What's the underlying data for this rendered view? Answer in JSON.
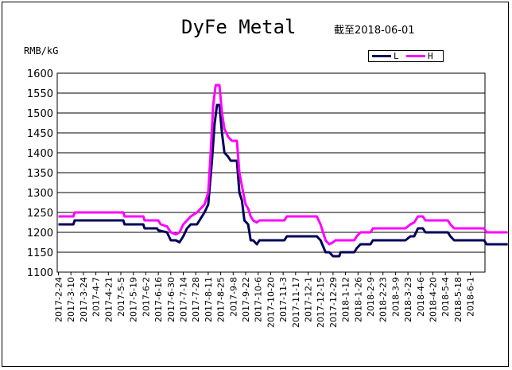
{
  "chart_data": {
    "type": "line",
    "title": "DyFe Metal",
    "subtitle": "截至2018-06-01",
    "ylabel": "RMB/kG",
    "xlabel": "",
    "ylim": [
      1100,
      1600
    ],
    "yticks": [
      1100,
      1150,
      1200,
      1250,
      1300,
      1350,
      1400,
      1450,
      1500,
      1550,
      1600
    ],
    "grid": "horizontal",
    "legend": "top-right",
    "categories": [
      "2017-2-24",
      "2017-3-10",
      "2017-3-24",
      "2017-4-7",
      "2017-4-21",
      "2017-5-5",
      "2017-5-19",
      "2017-6-2",
      "2017-6-16",
      "2017-6-30",
      "2017-7-14",
      "2017-7-28",
      "2017-8-11",
      "2017-8-25",
      "2017-9-8",
      "2017-9-22",
      "2017-10-6",
      "2017-10-20",
      "2017-11-3",
      "2017-11-17",
      "2017-12-1",
      "2017-12-15",
      "2017-12-29",
      "2018-1-12",
      "2018-1-26",
      "2018-2-9",
      "2018-2-23",
      "2018-3-9",
      "2018-3-23",
      "2018-4-6",
      "2018-4-20",
      "2018-5-4",
      "2018-5-18",
      "2018-6-1"
    ],
    "series": [
      {
        "name": "L",
        "color": "#00005a",
        "points": [
          [
            0,
            1220
          ],
          [
            1.2,
            1220
          ],
          [
            1.3,
            1230
          ],
          [
            5.2,
            1230
          ],
          [
            5.3,
            1220
          ],
          [
            6.8,
            1220
          ],
          [
            6.9,
            1210
          ],
          [
            7.9,
            1210
          ],
          [
            8.0,
            1205
          ],
          [
            8.7,
            1200
          ],
          [
            9.0,
            1180
          ],
          [
            9.4,
            1180
          ],
          [
            9.7,
            1175
          ],
          [
            10.0,
            1190
          ],
          [
            10.3,
            1210
          ],
          [
            10.6,
            1220
          ],
          [
            11.1,
            1220
          ],
          [
            11.3,
            1230
          ],
          [
            11.7,
            1250
          ],
          [
            12.0,
            1270
          ],
          [
            12.3,
            1380
          ],
          [
            12.5,
            1470
          ],
          [
            12.7,
            1520
          ],
          [
            12.9,
            1520
          ],
          [
            13.1,
            1450
          ],
          [
            13.3,
            1400
          ],
          [
            13.6,
            1390
          ],
          [
            13.8,
            1380
          ],
          [
            14.3,
            1380
          ],
          [
            14.5,
            1300
          ],
          [
            14.7,
            1280
          ],
          [
            14.9,
            1230
          ],
          [
            15.2,
            1220
          ],
          [
            15.4,
            1180
          ],
          [
            15.6,
            1180
          ],
          [
            15.9,
            1170
          ],
          [
            16.1,
            1180
          ],
          [
            18.1,
            1180
          ],
          [
            18.3,
            1190
          ],
          [
            20.7,
            1190
          ],
          [
            21.0,
            1180
          ],
          [
            21.4,
            1150
          ],
          [
            21.7,
            1150
          ],
          [
            22.0,
            1140
          ],
          [
            22.5,
            1140
          ],
          [
            22.6,
            1150
          ],
          [
            23.7,
            1150
          ],
          [
            23.9,
            1160
          ],
          [
            24.2,
            1170
          ],
          [
            25.0,
            1170
          ],
          [
            25.2,
            1180
          ],
          [
            27.8,
            1180
          ],
          [
            28.2,
            1190
          ],
          [
            28.5,
            1190
          ],
          [
            28.8,
            1210
          ],
          [
            29.2,
            1210
          ],
          [
            29.4,
            1200
          ],
          [
            31.2,
            1200
          ],
          [
            31.4,
            1190
          ],
          [
            31.7,
            1180
          ],
          [
            34.1,
            1180
          ],
          [
            34.3,
            1170
          ],
          [
            36,
            1170
          ]
        ]
      },
      {
        "name": "H",
        "color": "#ff00ff",
        "points": [
          [
            0,
            1240
          ],
          [
            1.2,
            1240
          ],
          [
            1.3,
            1250
          ],
          [
            5.2,
            1250
          ],
          [
            5.3,
            1240
          ],
          [
            6.8,
            1240
          ],
          [
            6.9,
            1230
          ],
          [
            8.0,
            1230
          ],
          [
            8.2,
            1220
          ],
          [
            8.7,
            1215
          ],
          [
            9.0,
            1200
          ],
          [
            9.4,
            1195
          ],
          [
            9.7,
            1200
          ],
          [
            10.0,
            1220
          ],
          [
            10.3,
            1230
          ],
          [
            10.6,
            1240
          ],
          [
            11.1,
            1250
          ],
          [
            11.4,
            1260
          ],
          [
            11.7,
            1270
          ],
          [
            12.0,
            1300
          ],
          [
            12.2,
            1400
          ],
          [
            12.4,
            1520
          ],
          [
            12.6,
            1570
          ],
          [
            12.9,
            1570
          ],
          [
            13.1,
            1500
          ],
          [
            13.3,
            1460
          ],
          [
            13.6,
            1440
          ],
          [
            13.9,
            1430
          ],
          [
            14.3,
            1430
          ],
          [
            14.5,
            1350
          ],
          [
            14.8,
            1300
          ],
          [
            15.0,
            1270
          ],
          [
            15.2,
            1260
          ],
          [
            15.4,
            1240
          ],
          [
            15.6,
            1230
          ],
          [
            15.9,
            1225
          ],
          [
            16.1,
            1230
          ],
          [
            18.1,
            1230
          ],
          [
            18.3,
            1240
          ],
          [
            20.7,
            1240
          ],
          [
            21.0,
            1220
          ],
          [
            21.4,
            1180
          ],
          [
            21.7,
            1170
          ],
          [
            22.0,
            1175
          ],
          [
            22.2,
            1180
          ],
          [
            23.7,
            1180
          ],
          [
            23.9,
            1190
          ],
          [
            24.2,
            1200
          ],
          [
            25.0,
            1200
          ],
          [
            25.2,
            1210
          ],
          [
            27.8,
            1210
          ],
          [
            28.2,
            1220
          ],
          [
            28.5,
            1225
          ],
          [
            28.8,
            1240
          ],
          [
            29.2,
            1240
          ],
          [
            29.4,
            1230
          ],
          [
            31.2,
            1230
          ],
          [
            31.4,
            1220
          ],
          [
            31.7,
            1210
          ],
          [
            34.1,
            1210
          ],
          [
            34.3,
            1200
          ],
          [
            36,
            1200
          ]
        ]
      }
    ]
  }
}
